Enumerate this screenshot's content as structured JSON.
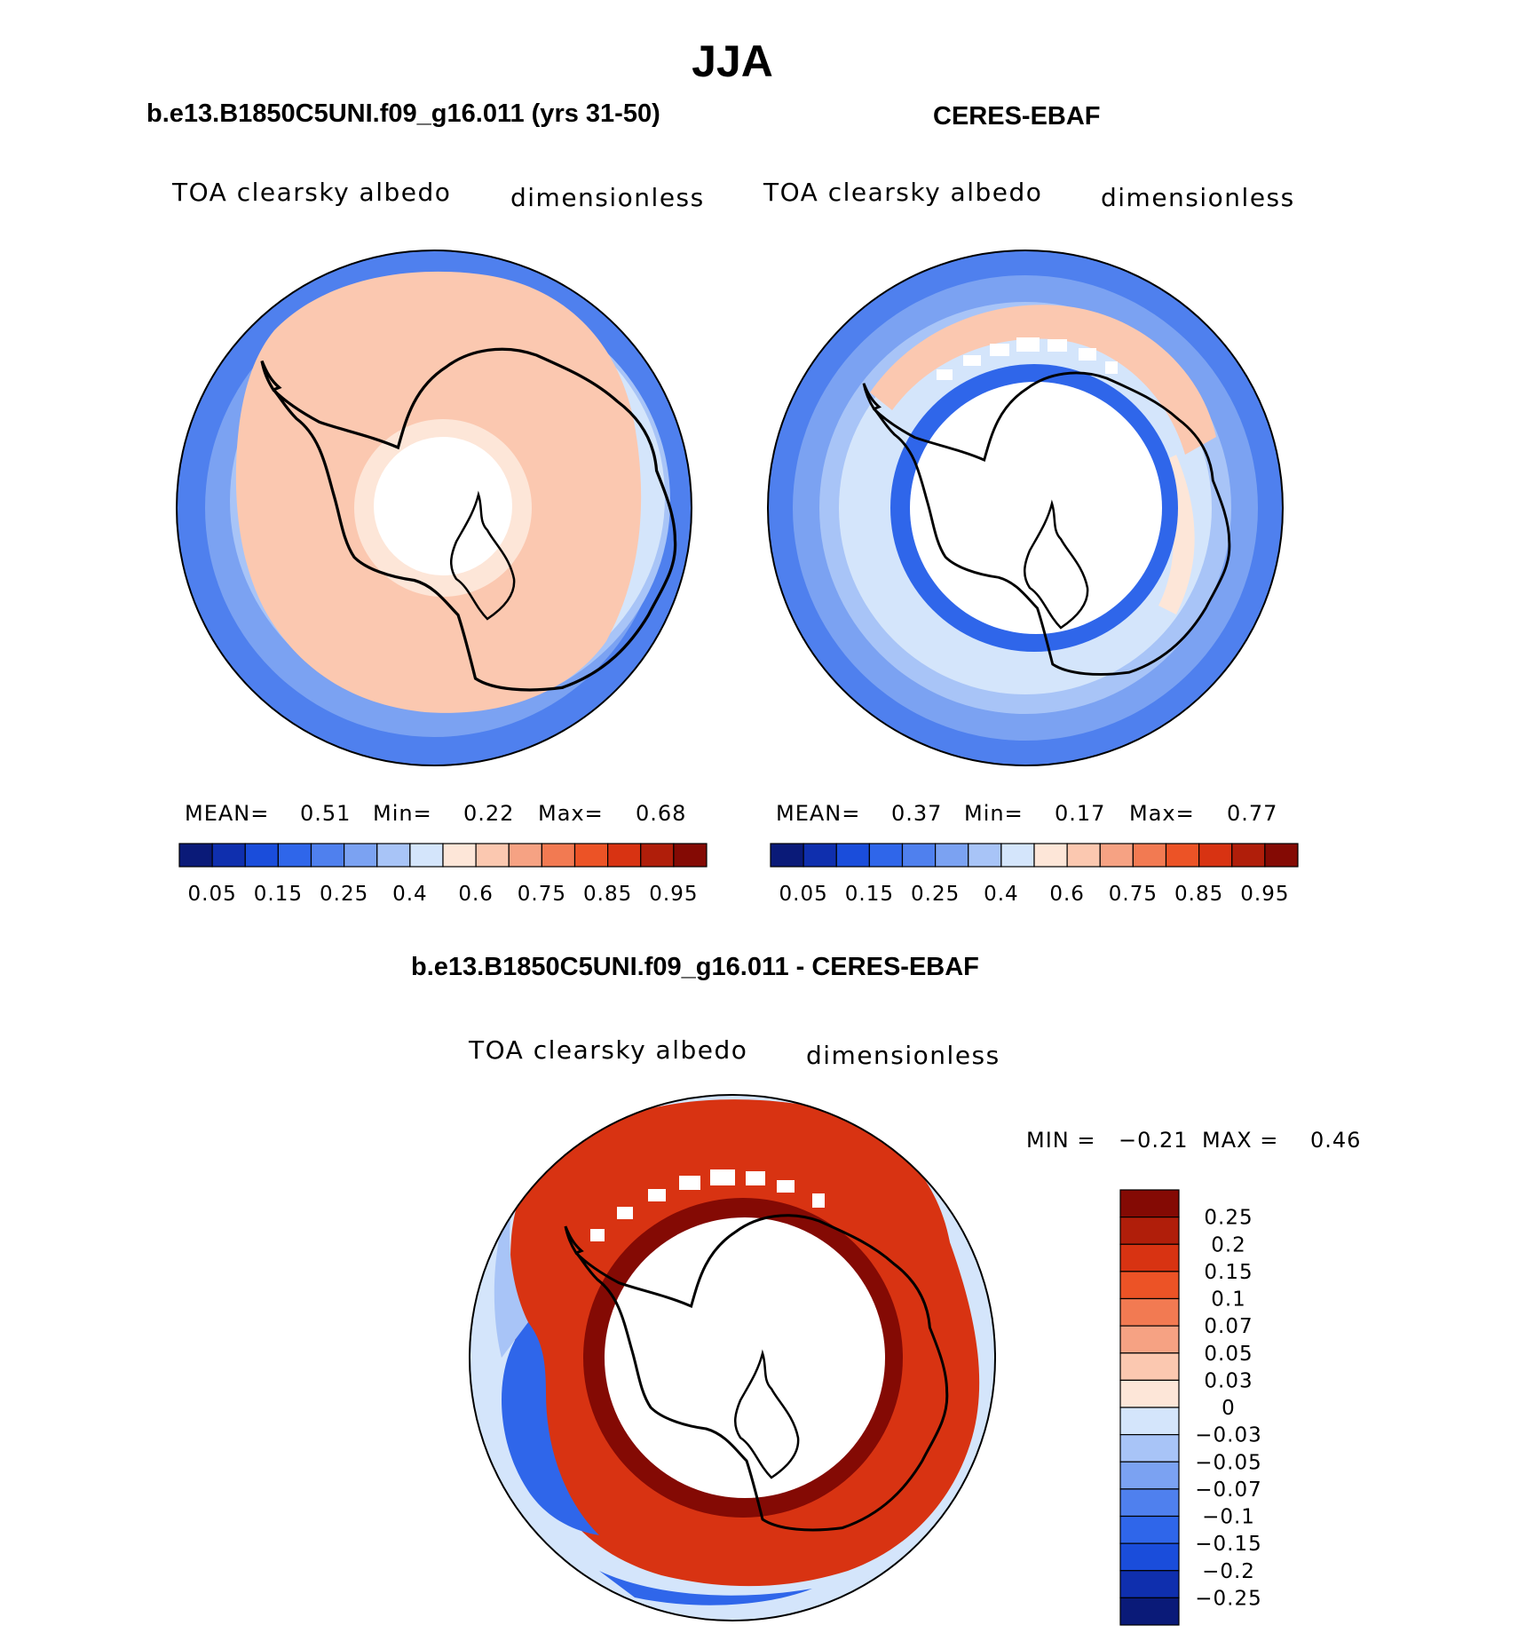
{
  "figure_title": "JJA",
  "panels": [
    {
      "title": "b.e13.B1850C5UNI.f09_g16.011 (yrs 31-50)",
      "variable": "TOA clearsky albedo",
      "units": "dimensionless",
      "stats": {
        "mean_label": "MEAN=",
        "mean": "0.51",
        "min_label": "Min=",
        "min": "0.22",
        "max_label": "Max=",
        "max": "0.68"
      }
    },
    {
      "title": "CERES-EBAF",
      "variable": "TOA clearsky albedo",
      "units": "dimensionless",
      "stats": {
        "mean_label": "MEAN=",
        "mean": "0.37",
        "min_label": "Min=",
        "min": "0.17",
        "max_label": "Max=",
        "max": "0.77"
      }
    }
  ],
  "colorbar_abs": {
    "colors": [
      "#0a1a78",
      "#0f2fae",
      "#1a4ddb",
      "#2f66ea",
      "#4f80ee",
      "#7ba2f2",
      "#a8c4f7",
      "#d4e5fb",
      "#fde6d8",
      "#fbc8b0",
      "#f6a283",
      "#f27a52",
      "#ec5326",
      "#d83312",
      "#b01e0a",
      "#840a04"
    ],
    "labels": [
      "0.05",
      "0.15",
      "0.25",
      "0.4",
      "0.6",
      "0.75",
      "0.85",
      "0.95"
    ]
  },
  "diff_panel": {
    "title": "b.e13.B1850C5UNI.f09_g16.011 - CERES-EBAF",
    "variable": "TOA clearsky albedo",
    "units": "dimensionless",
    "min_label": "MIN =",
    "min": "−0.21",
    "max_label": "MAX =",
    "max": "0.46"
  },
  "colorbar_diff": {
    "colors": [
      "#840a04",
      "#b01e0a",
      "#d83312",
      "#ec5326",
      "#f27a52",
      "#f6a283",
      "#fbc8b0",
      "#fde6d8",
      "#d4e5fb",
      "#a8c4f7",
      "#7ba2f2",
      "#4f80ee",
      "#2f66ea",
      "#1a4ddb",
      "#0f2fae",
      "#0a1a78"
    ],
    "labels": [
      "0.25",
      "0.2",
      "0.15",
      "0.1",
      "0.07",
      "0.05",
      "0.03",
      "0",
      "−0.03",
      "−0.05",
      "−0.07",
      "−0.1",
      "−0.15",
      "−0.2",
      "−0.25"
    ]
  },
  "map_colors": {
    "ocean_low": "#4f80ee",
    "ocean_mid": "#7ba2f2",
    "ocean_pale": "#d4e5fb",
    "land_peach": "#fbc8b0",
    "cream": "#fde6d8",
    "blue_strong": "#2f66ea",
    "diff_red": "#d83312",
    "diff_dark": "#840a04",
    "diff_orange": "#ec5326",
    "missing": "#ffffff",
    "coast": "#000000"
  }
}
